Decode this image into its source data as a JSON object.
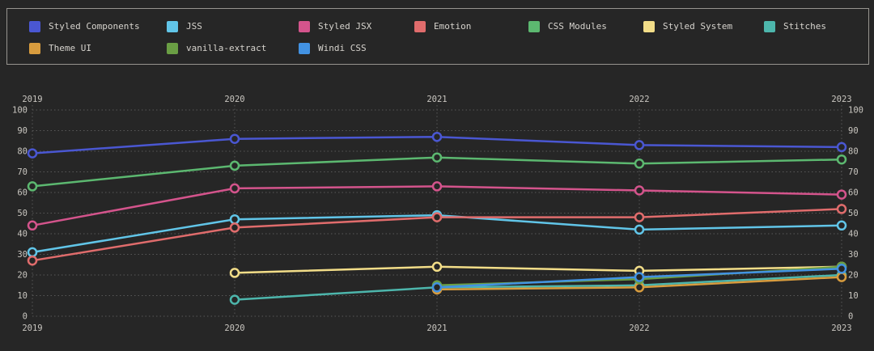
{
  "page": {
    "background": "#262626",
    "legend_border": "#97948f",
    "grid_color": "#585858",
    "axis_text_color": "#c9c6c0",
    "point_fill": "#262626"
  },
  "legend": {
    "items": [
      {
        "label": "Styled Components",
        "color": "#4a57d2",
        "row": 0,
        "col": 0
      },
      {
        "label": "JSS",
        "color": "#61c5e8",
        "row": 0,
        "col": 1
      },
      {
        "label": "Styled JSX",
        "color": "#d4548c",
        "row": 0,
        "col": 2
      },
      {
        "label": "Emotion",
        "color": "#e06c6c",
        "row": 0,
        "col": 3
      },
      {
        "label": "CSS Modules",
        "color": "#5cb870",
        "row": 0,
        "col": 4
      },
      {
        "label": "Styled System",
        "color": "#f2dd88",
        "row": 0,
        "col": 5
      },
      {
        "label": "Stitches",
        "color": "#4db6ac",
        "row": 0,
        "col": 6
      },
      {
        "label": "Theme UI",
        "color": "#d89c3e",
        "row": 1,
        "col": 0
      },
      {
        "label": "vanilla-extract",
        "color": "#6a9e44",
        "row": 1,
        "col": 1
      },
      {
        "label": "Windi CSS",
        "color": "#4292e2",
        "row": 1,
        "col": 2
      }
    ]
  },
  "chart_data": {
    "type": "line",
    "x": [
      2019,
      2020,
      2021,
      2022,
      2023
    ],
    "series": [
      {
        "name": "Styled Components",
        "color": "#4a57d2",
        "values": [
          79,
          86,
          87,
          83,
          82
        ]
      },
      {
        "name": "JSS",
        "color": "#61c5e8",
        "values": [
          31,
          47,
          49,
          42,
          44
        ]
      },
      {
        "name": "Styled JSX",
        "color": "#d4548c",
        "values": [
          44,
          62,
          63,
          61,
          59
        ]
      },
      {
        "name": "Emotion",
        "color": "#e06c6c",
        "values": [
          27,
          43,
          48,
          48,
          52
        ]
      },
      {
        "name": "CSS Modules",
        "color": "#5cb870",
        "values": [
          63,
          73,
          77,
          74,
          76
        ]
      },
      {
        "name": "Styled System",
        "color": "#f2dd88",
        "values": [
          null,
          21,
          24,
          22,
          24
        ]
      },
      {
        "name": "Stitches",
        "color": "#4db6ac",
        "values": [
          null,
          8,
          14,
          15,
          20
        ]
      },
      {
        "name": "Theme UI",
        "color": "#d89c3e",
        "values": [
          null,
          null,
          13,
          14,
          19
        ]
      },
      {
        "name": "vanilla-extract",
        "color": "#6a9e44",
        "values": [
          null,
          null,
          15,
          18,
          24
        ]
      },
      {
        "name": "Windi CSS",
        "color": "#4292e2",
        "values": [
          null,
          null,
          14,
          19,
          23
        ]
      }
    ],
    "ylim": [
      0,
      100
    ],
    "yticks": [
      0,
      10,
      20,
      30,
      40,
      50,
      60,
      70,
      80,
      90,
      100
    ],
    "axis_labels": {
      "top": [
        "2019",
        "2020",
        "2021",
        "2022",
        "2023"
      ],
      "bottom": [
        "2019",
        "2020",
        "2021",
        "2022",
        "2023"
      ],
      "left": [
        "0",
        "10",
        "20",
        "30",
        "40",
        "50",
        "60",
        "70",
        "80",
        "90",
        "100"
      ],
      "right": [
        "0",
        "10",
        "20",
        "30",
        "40",
        "50",
        "60",
        "70",
        "80",
        "90",
        "100"
      ]
    },
    "grid": true,
    "legend_position": "top"
  }
}
